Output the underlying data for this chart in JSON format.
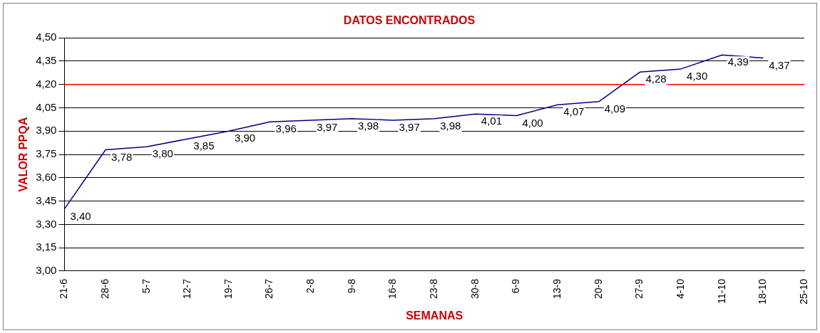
{
  "chart_data": {
    "type": "line",
    "title": "DATOS ENCONTRADOS",
    "xlabel": "SEMANAS",
    "ylabel": "VALOR PPQA",
    "categories": [
      "21-6",
      "28-6",
      "5-7",
      "12-7",
      "19-7",
      "26-7",
      "2-8",
      "9-8",
      "16-8",
      "23-8",
      "30-8",
      "6-9",
      "13-9",
      "20-9",
      "27-9",
      "4-10",
      "11-10",
      "18-10",
      "25-10"
    ],
    "series": [
      {
        "color": "#000080",
        "values": [
          3.4,
          3.78,
          3.8,
          3.85,
          3.9,
          3.96,
          3.97,
          3.98,
          3.97,
          3.98,
          4.01,
          4.0,
          4.07,
          4.09,
          4.28,
          4.3,
          4.39,
          4.37,
          null
        ],
        "value_labels": [
          "3,40",
          "3,78",
          "3,80",
          "3,85",
          "3,90",
          "3,96",
          "3,97",
          "3,98",
          "3,97",
          "3,98",
          "4,01",
          "4,00",
          "4,07",
          "4,09",
          "4,28",
          "4,30",
          "4,39",
          "4,37",
          null
        ]
      }
    ],
    "ylim": [
      3,
      4.5
    ],
    "yticks": [
      {
        "value": 3,
        "label": "3,00"
      },
      {
        "value": 3.15,
        "label": "3,15"
      },
      {
        "value": 3.3,
        "label": "3,30"
      },
      {
        "value": 3.45,
        "label": "3,45"
      },
      {
        "value": 3.6,
        "label": "3,60"
      },
      {
        "value": 3.75,
        "label": "3,75"
      },
      {
        "value": 3.9,
        "label": "3,90"
      },
      {
        "value": 4.05,
        "label": "4,05"
      },
      {
        "value": 4.2,
        "label": "4,20"
      },
      {
        "value": 4.35,
        "label": "4,35"
      },
      {
        "value": 4.5,
        "label": "4,50"
      }
    ],
    "grid": "y",
    "marker": "none",
    "ref_lines": [
      {
        "axis": "y",
        "value": 4.2,
        "color": "#ff0000"
      }
    ]
  }
}
